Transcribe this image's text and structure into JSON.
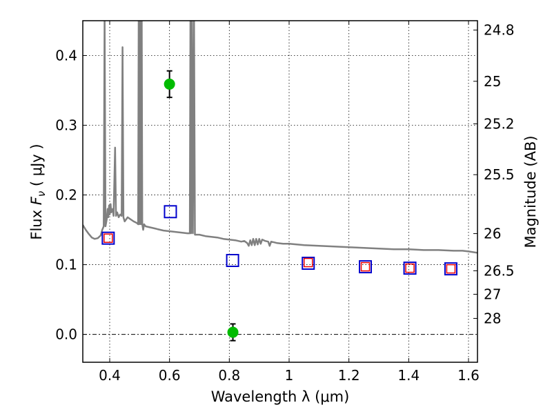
{
  "chart_data": {
    "type": "scatter",
    "xlabel": "Wavelength  λ (μm)",
    "ylabel": "Flux  F_ν  ( μJy )",
    "ylabel_parts": {
      "pre": "Flux  ",
      "var": "F",
      "sub": "ν",
      "post": "  ( μJy )"
    },
    "y2label": "Magnitude (AB)",
    "xlim": [
      0.31,
      1.63
    ],
    "ylim": [
      -0.04,
      0.45
    ],
    "x_ticks": [
      0.4,
      0.6,
      0.8,
      1.0,
      1.2,
      1.4,
      1.6
    ],
    "x_tick_labels": [
      "0.4",
      "0.6",
      "0.8",
      "1",
      "1.2",
      "1.4",
      "1.6"
    ],
    "y_ticks": [
      0.0,
      0.1,
      0.2,
      0.3,
      0.4
    ],
    "y_tick_labels": [
      "0.0",
      "0.1",
      "0.2",
      "0.3",
      "0.4"
    ],
    "mag_ticks": [
      24.8,
      25,
      25.2,
      25.5,
      26,
      26.5,
      27,
      28
    ],
    "mag_tick_labels": [
      "24.8",
      "25",
      "25.2",
      "25.5",
      "26",
      "26.5",
      "27",
      "28"
    ],
    "grid": true,
    "colors": {
      "spectrum": "#808080",
      "observed": "#00bb00",
      "model_blue": "#0000cc",
      "model_red": "#ee0000",
      "errorbar": "#000000"
    },
    "series": [
      {
        "name": "Template spectrum",
        "style": "line",
        "points": [
          [
            0.31,
            0.157
          ],
          [
            0.32,
            0.15
          ],
          [
            0.33,
            0.144
          ],
          [
            0.34,
            0.139
          ],
          [
            0.35,
            0.137
          ],
          [
            0.36,
            0.138
          ],
          [
            0.37,
            0.142
          ],
          [
            0.375,
            0.15
          ],
          [
            0.38,
            0.155
          ],
          [
            0.383,
            0.46
          ],
          [
            0.386,
            0.155
          ],
          [
            0.39,
            0.165
          ],
          [
            0.393,
            0.18
          ],
          [
            0.395,
            0.168
          ],
          [
            0.398,
            0.185
          ],
          [
            0.4,
            0.172
          ],
          [
            0.403,
            0.187
          ],
          [
            0.405,
            0.175
          ],
          [
            0.41,
            0.18
          ],
          [
            0.413,
            0.17
          ],
          [
            0.418,
            0.268
          ],
          [
            0.421,
            0.17
          ],
          [
            0.425,
            0.175
          ],
          [
            0.43,
            0.168
          ],
          [
            0.435,
            0.172
          ],
          [
            0.44,
            0.17
          ],
          [
            0.443,
            0.412
          ],
          [
            0.446,
            0.168
          ],
          [
            0.45,
            0.162
          ],
          [
            0.46,
            0.168
          ],
          [
            0.47,
            0.165
          ],
          [
            0.48,
            0.162
          ],
          [
            0.49,
            0.16
          ],
          [
            0.495,
            0.158
          ],
          [
            0.497,
            0.46
          ],
          [
            0.499,
            0.158
          ],
          [
            0.502,
            0.46
          ],
          [
            0.504,
            0.158
          ],
          [
            0.507,
            0.46
          ],
          [
            0.509,
            0.158
          ],
          [
            0.512,
            0.15
          ],
          [
            0.515,
            0.158
          ],
          [
            0.52,
            0.155
          ],
          [
            0.53,
            0.154
          ],
          [
            0.54,
            0.153
          ],
          [
            0.55,
            0.152
          ],
          [
            0.56,
            0.151
          ],
          [
            0.58,
            0.149
          ],
          [
            0.6,
            0.148
          ],
          [
            0.62,
            0.147
          ],
          [
            0.64,
            0.146
          ],
          [
            0.66,
            0.145
          ],
          [
            0.668,
            0.145
          ],
          [
            0.67,
            0.46
          ],
          [
            0.672,
            0.145
          ],
          [
            0.675,
            0.46
          ],
          [
            0.678,
            0.145
          ],
          [
            0.682,
            0.46
          ],
          [
            0.685,
            0.143
          ],
          [
            0.7,
            0.143
          ],
          [
            0.72,
            0.141
          ],
          [
            0.74,
            0.14
          ],
          [
            0.76,
            0.139
          ],
          [
            0.78,
            0.137
          ],
          [
            0.8,
            0.136
          ],
          [
            0.82,
            0.135
          ],
          [
            0.84,
            0.133
          ],
          [
            0.85,
            0.134
          ],
          [
            0.86,
            0.131
          ],
          [
            0.865,
            0.127
          ],
          [
            0.87,
            0.135
          ],
          [
            0.875,
            0.128
          ],
          [
            0.88,
            0.137
          ],
          [
            0.885,
            0.128
          ],
          [
            0.89,
            0.137
          ],
          [
            0.895,
            0.129
          ],
          [
            0.9,
            0.137
          ],
          [
            0.905,
            0.13
          ],
          [
            0.91,
            0.136
          ],
          [
            0.92,
            0.134
          ],
          [
            0.93,
            0.133
          ],
          [
            0.935,
            0.127
          ],
          [
            0.94,
            0.133
          ],
          [
            0.95,
            0.132
          ],
          [
            0.96,
            0.131
          ],
          [
            0.98,
            0.13
          ],
          [
            1.0,
            0.13
          ],
          [
            1.05,
            0.128
          ],
          [
            1.1,
            0.127
          ],
          [
            1.15,
            0.126
          ],
          [
            1.2,
            0.125
          ],
          [
            1.25,
            0.124
          ],
          [
            1.3,
            0.123
          ],
          [
            1.35,
            0.122
          ],
          [
            1.4,
            0.122
          ],
          [
            1.45,
            0.121
          ],
          [
            1.5,
            0.121
          ],
          [
            1.55,
            0.12
          ],
          [
            1.58,
            0.12
          ],
          [
            1.6,
            0.119
          ],
          [
            1.63,
            0.117
          ]
        ]
      },
      {
        "name": "Observed photometry",
        "style": "circle",
        "points": [
          {
            "x": 0.6,
            "y": 0.359,
            "err": 0.019
          },
          {
            "x": 0.812,
            "y": 0.003,
            "err": 0.012
          }
        ]
      },
      {
        "name": "Model photometry (blue)",
        "style": "square",
        "x": [
          0.395,
          0.603,
          0.811,
          1.064,
          1.255,
          1.404,
          1.541
        ],
        "y": [
          0.138,
          0.176,
          0.106,
          0.102,
          0.097,
          0.095,
          0.094
        ]
      },
      {
        "name": "Model photometry (red)",
        "style": "square",
        "x": [
          0.395,
          1.064,
          1.255,
          1.404,
          1.541
        ],
        "y": [
          0.138,
          0.103,
          0.097,
          0.095,
          0.094
        ]
      }
    ]
  }
}
